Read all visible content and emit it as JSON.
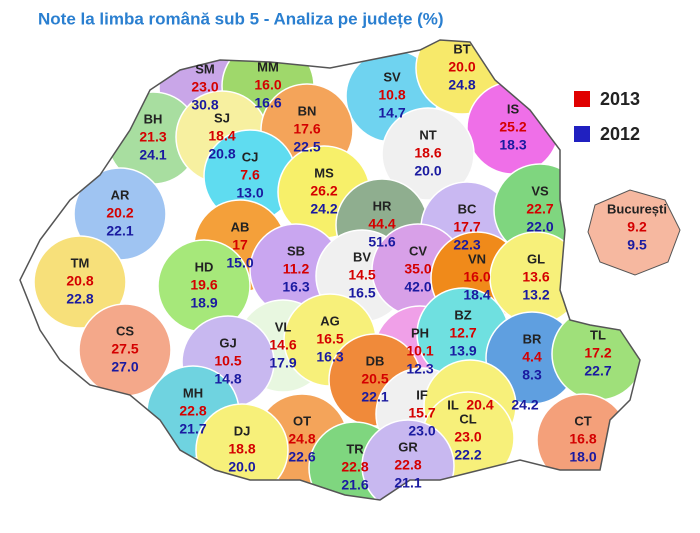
{
  "title": "Note la limba română sub 5 - Analiza pe județe  (%)",
  "legend": [
    "2013",
    "2012"
  ],
  "counties": [
    {
      "code": "SM",
      "v2013": "23.0",
      "v2012": "30.8"
    },
    {
      "code": "MM",
      "v2013": "16.0",
      "v2012": "16.6"
    },
    {
      "code": "SV",
      "v2013": "10.8",
      "v2012": "14.7"
    },
    {
      "code": "BT",
      "v2013": "20.0",
      "v2012": "24.8"
    },
    {
      "code": "BH",
      "v2013": "21.3",
      "v2012": "24.1"
    },
    {
      "code": "SJ",
      "v2013": "18.4",
      "v2012": "20.8"
    },
    {
      "code": "BN",
      "v2013": "17.6",
      "v2012": "22.5"
    },
    {
      "code": "IS",
      "v2013": "25.2",
      "v2012": "18.3"
    },
    {
      "code": "NT",
      "v2013": "18.6",
      "v2012": "20.0"
    },
    {
      "code": "CJ",
      "v2013": "7.6",
      "v2012": "13.0"
    },
    {
      "code": "MS",
      "v2013": "26.2",
      "v2012": "24.2"
    },
    {
      "code": "HR",
      "v2013": "44.4",
      "v2012": "51.6"
    },
    {
      "code": "AR",
      "v2013": "20.2",
      "v2012": "22.1"
    },
    {
      "code": "BC",
      "v2013": "17.7",
      "v2012": "22.3"
    },
    {
      "code": "VS",
      "v2013": "22.7",
      "v2012": "22.0"
    },
    {
      "code": "AB",
      "v2013": "17",
      "v2012": "15.0"
    },
    {
      "code": "TM",
      "v2013": "20.8",
      "v2012": "22.8"
    },
    {
      "code": "SB",
      "v2013": "11.2",
      "v2012": "16.3"
    },
    {
      "code": "BV",
      "v2013": "14.5",
      "v2012": "16.5"
    },
    {
      "code": "CV",
      "v2013": "35.0",
      "v2012": "42.0"
    },
    {
      "code": "VN",
      "v2013": "16.0",
      "v2012": "18.4"
    },
    {
      "code": "GL",
      "v2013": "13.6",
      "v2012": "13.2"
    },
    {
      "code": "HD",
      "v2013": "19.6",
      "v2012": "18.9"
    },
    {
      "code": "CS",
      "v2013": "27.5",
      "v2012": "27.0"
    },
    {
      "code": "VL",
      "v2013": "14.6",
      "v2012": "17.9"
    },
    {
      "code": "AG",
      "v2013": "16.5",
      "v2012": "16.3"
    },
    {
      "code": "PH",
      "v2013": "10.1",
      "v2012": "12.3"
    },
    {
      "code": "BZ",
      "v2013": "12.7",
      "v2012": "13.9"
    },
    {
      "code": "BR",
      "v2013": "4.4",
      "v2012": "8.3"
    },
    {
      "code": "TL",
      "v2013": "17.2",
      "v2012": "22.7"
    },
    {
      "code": "GJ",
      "v2013": "10.5",
      "v2012": "14.8"
    },
    {
      "code": "DB",
      "v2013": "20.5",
      "v2012": "22.1"
    },
    {
      "code": "MH",
      "v2013": "22.8",
      "v2012": "21.7"
    },
    {
      "code": "IF",
      "v2013": "15.7",
      "v2012": "23.0"
    },
    {
      "code": "IL",
      "v2013": "20.4",
      "v2012": "24.2"
    },
    {
      "code": "CL",
      "v2013": "23.0",
      "v2012": "22.2"
    },
    {
      "code": "CT",
      "v2013": "16.8",
      "v2012": "18.0"
    },
    {
      "code": "OT",
      "v2013": "24.8",
      "v2012": "22.6"
    },
    {
      "code": "DJ",
      "v2013": "18.8",
      "v2012": "20.0"
    },
    {
      "code": "TR",
      "v2013": "22.8",
      "v2012": "21.6"
    },
    {
      "code": "GR",
      "v2013": "22.8",
      "v2012": "21.1"
    },
    {
      "code": "București",
      "v2013": "9.2",
      "v2012": "9.5"
    }
  ]
}
